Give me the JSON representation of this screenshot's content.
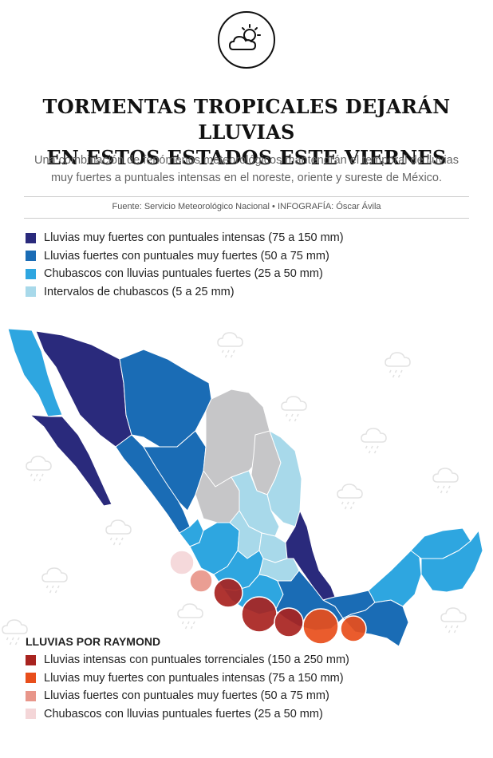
{
  "header": {
    "icon": "sun-behind-cloud-icon",
    "title_line1": "TORMENTAS TROPICALES DEJARÁN LLUVIAS",
    "title_line2": "EN ESTOS ESTADOS ESTE VIERNES",
    "subtitle_line1": "Una combinación de fenómenos meteorológicos mantendrán el temporal de lluvias",
    "subtitle_line2": "muy fuertes a puntuales intensas en el noreste, oriente y sureste de México.",
    "source": "Fuente: Servicio Meteorológico Nacional • INFOGRAFÍA: Óscar Ávila"
  },
  "legend": [
    {
      "label": "Lluvias muy fuertes con puntuales intensas (75 a 150 mm)",
      "color": "#2a2a7c"
    },
    {
      "label": "Lluvias fuertes con puntuales muy fuertes (50 a 75 mm)",
      "color": "#1a6cb5"
    },
    {
      "label": "Chubascos con lluvias puntuales fuertes (25 a 50 mm)",
      "color": "#2ea6e0"
    },
    {
      "label": "Intervalos de chubascos (5 a 25 mm)",
      "color": "#a8d9ea"
    }
  ],
  "raymond": {
    "title": "LLUVIAS POR RAYMOND",
    "legend": [
      {
        "label": "Lluvias intensas con puntuales torrenciales (150 a 250 mm)",
        "color": "#a8231f"
      },
      {
        "label": "Lluvias muy fuertes con puntuales intensas (75 a 150 mm)",
        "color": "#e84e1b"
      },
      {
        "label": "Lluvias fuertes con puntuales muy fuertes (50 a 75 mm)",
        "color": "#e8968a"
      },
      {
        "label": "Chubascos con lluvias puntuales fuertes (25 a 50 mm)",
        "color": "#f4d6d8"
      }
    ]
  },
  "colors": {
    "no_alert": "#c6c6c8",
    "storm_icon": "#e2e2e2"
  }
}
